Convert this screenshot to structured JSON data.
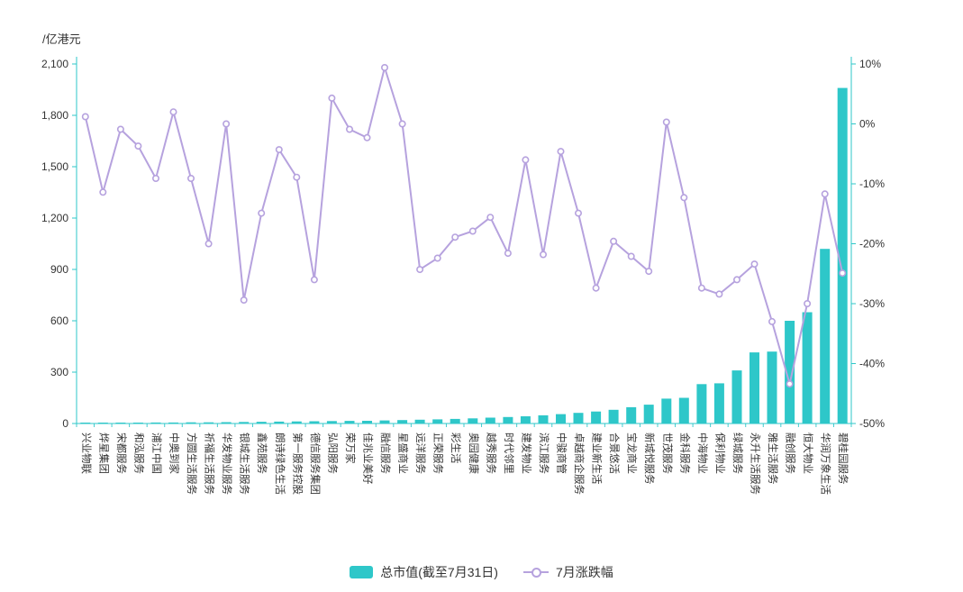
{
  "colors": {
    "bar": "#2EC7C9",
    "line": "#B6A2DE",
    "axis": "#2EC7C9",
    "text": "#333333",
    "background": "#FFFFFF"
  },
  "chart_data": {
    "type": "bar+line",
    "grid": false,
    "legend_position": "bottom",
    "categories": [
      "兴业物联",
      "烨星集团",
      "宋都服务",
      "和泓服务",
      "浦江中国",
      "中奥到家",
      "方圆生活服务",
      "祈福生活服务",
      "华发物业服务",
      "银城生活服务",
      "鑫苑服务",
      "朗诗绿色生活",
      "第一服务控股",
      "德信服务集团",
      "弘阳服务",
      "荣万家",
      "佳兆业美好",
      "融信服务",
      "星盛商业",
      "远洋服务",
      "正荣服务",
      "彩生活",
      "奥园健康",
      "越秀服务",
      "时代邻里",
      "建发物业",
      "滨江服务",
      "中骏商管",
      "卓越商企服务",
      "建业新生活",
      "合景悠活",
      "宝龙商业",
      "新城悦服务",
      "世茂服务",
      "金科服务",
      "中海物业",
      "保利物业",
      "绿城服务",
      "永升生活服务",
      "雅生活服务",
      "融创服务",
      "恒大物业",
      "华润万象生活",
      "碧桂园服务"
    ],
    "series": [
      {
        "name": "总市值(截至7月31日)",
        "type": "bar",
        "yaxis": "left",
        "unit": "亿港元",
        "values": [
          3,
          4,
          5,
          5,
          6,
          6,
          7,
          7,
          8,
          9,
          10,
          11,
          12,
          13,
          14,
          15,
          16,
          18,
          20,
          22,
          24,
          27,
          30,
          34,
          38,
          42,
          48,
          55,
          62,
          70,
          80,
          95,
          110,
          145,
          150,
          230,
          235,
          310,
          415,
          420,
          600,
          650,
          1020,
          1960
        ]
      },
      {
        "name": "7月涨跌幅",
        "type": "line",
        "yaxis": "right",
        "unit": "%",
        "values": [
          1.2,
          -11.4,
          -0.9,
          -3.7,
          -9.1,
          2.0,
          -9.1,
          -20.0,
          0.0,
          -29.4,
          -14.9,
          -4.3,
          -8.9,
          -26.0,
          4.3,
          -0.9,
          -2.3,
          9.4,
          0.0,
          -24.3,
          -22.4,
          -18.9,
          -17.9,
          -15.6,
          -21.6,
          -6.0,
          -21.8,
          -4.6,
          -14.9,
          -27.4,
          -19.6,
          -22.1,
          -24.6,
          0.3,
          -12.3,
          -27.4,
          -28.4,
          -26.0,
          -23.4,
          -33.0,
          -43.4,
          -30.0,
          -11.7,
          -24.9
        ]
      }
    ],
    "left_axis": {
      "label": "/亿港元",
      "min": 0,
      "max": 2100,
      "ticks": [
        0,
        300,
        600,
        900,
        1200,
        1500,
        1800,
        2100
      ]
    },
    "right_axis": {
      "min": -50,
      "max": 10,
      "ticks": [
        -50,
        -40,
        -30,
        -20,
        -10,
        0,
        10
      ],
      "suffix": "%"
    }
  }
}
